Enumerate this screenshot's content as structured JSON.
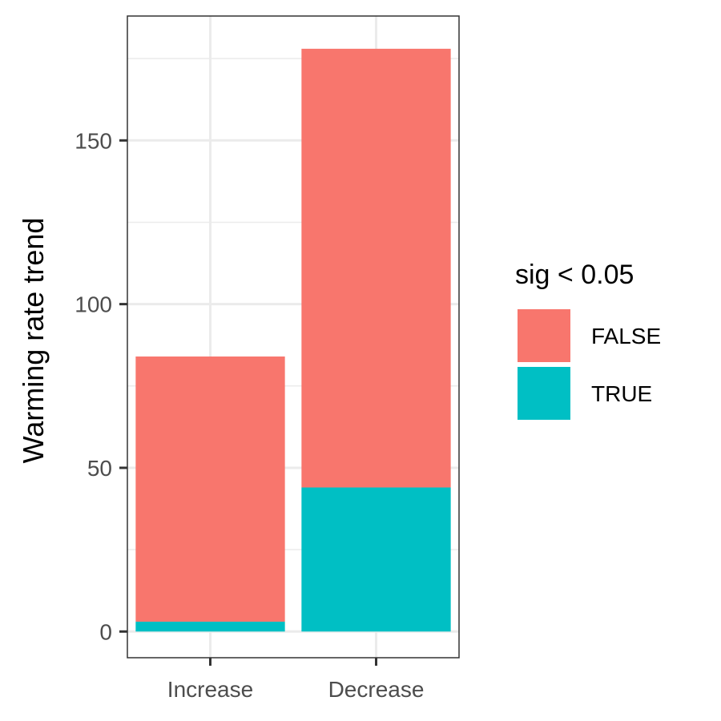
{
  "chart_data": {
    "type": "bar",
    "stacked": true,
    "categories": [
      "Increase",
      "Decrease"
    ],
    "series": [
      {
        "name": "FALSE",
        "values": [
          81,
          134
        ],
        "color": "#F8766D"
      },
      {
        "name": "TRUE",
        "values": [
          3,
          44
        ],
        "color": "#00BFC4"
      }
    ],
    "title": "",
    "xlabel": "",
    "ylabel": "Warming rate trend",
    "ylim": [
      -8,
      188
    ],
    "yticks": [
      0,
      50,
      100,
      150
    ],
    "grid": true,
    "legend": {
      "title": "sig < 0.05",
      "position": "right"
    }
  }
}
